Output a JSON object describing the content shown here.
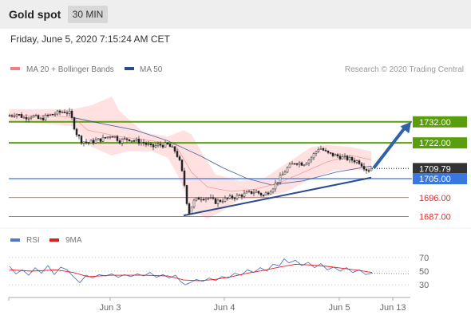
{
  "header": {
    "title": "Gold spot",
    "timeframe": "30 MIN"
  },
  "datetime": "Friday, June 5, 2020 7:15:24 AM CET",
  "legend": {
    "bb_label": "MA 20 + Bollinger Bands",
    "ma50_label": "MA 50",
    "copyright": "Research © 2020 Trading Central",
    "rsi_label": "RSI",
    "rsi_ma_label": "9MA"
  },
  "colors": {
    "bb_band": "#ffdcdc",
    "ma20": "#f08080",
    "ma50": "#2c4a8c",
    "resistance": "#5a9e0e",
    "support_red": "#e03030",
    "pivot_blue": "#3a78e0",
    "arrow": "#2f63a8",
    "rsi": "#5577cc",
    "rsi_ma": "#e02020",
    "last_price_tag": "#333333"
  },
  "chart_data": [
    {
      "type": "candlestick",
      "title": "Gold spot 30 MIN",
      "y_range": [
        1680,
        1752
      ],
      "x_ticks": [
        "Jun 3",
        "Jun 4",
        "Jun 5",
        "Jun 13"
      ],
      "levels": [
        {
          "value": 1732.0,
          "label": "1732.00",
          "kind": "resistance",
          "color": "#5a9e0e"
        },
        {
          "value": 1722.0,
          "label": "1722.00",
          "kind": "resistance",
          "color": "#5a9e0e"
        },
        {
          "value": 1709.79,
          "label": "1709.79",
          "kind": "last",
          "color": "#333333"
        },
        {
          "value": 1705.0,
          "label": "1705.00",
          "kind": "pivot",
          "color": "#3a78e0"
        },
        {
          "value": 1696.0,
          "label": "1696.00",
          "kind": "support",
          "color": "#e03030"
        },
        {
          "value": 1687.0,
          "label": "1687.00",
          "kind": "support",
          "color": "#e03030"
        }
      ],
      "trendline": {
        "from": [
          230,
          1687.5
        ],
        "to": [
          465,
          1705.5
        ]
      },
      "arrow": {
        "from": [
          468,
          1710
        ],
        "to": [
          515,
          1732
        ]
      },
      "price_path": [
        [
          12,
          1735
        ],
        [
          20,
          1736
        ],
        [
          30,
          1734
        ],
        [
          40,
          1735
        ],
        [
          50,
          1733
        ],
        [
          60,
          1735
        ],
        [
          70,
          1736
        ],
        [
          80,
          1737
        ],
        [
          88,
          1736
        ],
        [
          95,
          1727
        ],
        [
          102,
          1723
        ],
        [
          110,
          1722
        ],
        [
          120,
          1723
        ],
        [
          130,
          1724
        ],
        [
          140,
          1726
        ],
        [
          150,
          1723
        ],
        [
          160,
          1724
        ],
        [
          170,
          1723
        ],
        [
          180,
          1722
        ],
        [
          190,
          1720
        ],
        [
          200,
          1721
        ],
        [
          210,
          1721
        ],
        [
          220,
          1718
        ],
        [
          226,
          1712
        ],
        [
          232,
          1700
        ],
        [
          236,
          1688
        ],
        [
          242,
          1694
        ],
        [
          250,
          1696
        ],
        [
          260,
          1696
        ],
        [
          270,
          1694
        ],
        [
          280,
          1695
        ],
        [
          290,
          1696
        ],
        [
          300,
          1697
        ],
        [
          310,
          1698
        ],
        [
          320,
          1699
        ],
        [
          330,
          1697
        ],
        [
          340,
          1700
        ],
        [
          350,
          1705
        ],
        [
          360,
          1710
        ],
        [
          370,
          1713
        ],
        [
          380,
          1712
        ],
        [
          390,
          1715
        ],
        [
          400,
          1720
        ],
        [
          410,
          1717
        ],
        [
          420,
          1716
        ],
        [
          430,
          1715
        ],
        [
          440,
          1714
        ],
        [
          450,
          1713
        ],
        [
          460,
          1709
        ],
        [
          466,
          1710
        ]
      ],
      "ma50": [
        [
          92,
          1734
        ],
        [
          130,
          1731
        ],
        [
          170,
          1728
        ],
        [
          210,
          1723
        ],
        [
          250,
          1716
        ],
        [
          280,
          1710
        ],
        [
          310,
          1705
        ],
        [
          340,
          1702
        ],
        [
          380,
          1704
        ],
        [
          420,
          1708
        ],
        [
          465,
          1711
        ]
      ],
      "ma20": [
        [
          12,
          1735
        ],
        [
          60,
          1735
        ],
        [
          92,
          1734
        ],
        [
          110,
          1728
        ],
        [
          150,
          1725
        ],
        [
          190,
          1723
        ],
        [
          220,
          1721
        ],
        [
          240,
          1708
        ],
        [
          260,
          1701
        ],
        [
          290,
          1699
        ],
        [
          320,
          1700
        ],
        [
          350,
          1703
        ],
        [
          380,
          1708
        ],
        [
          410,
          1713
        ],
        [
          440,
          1716
        ],
        [
          465,
          1714
        ]
      ],
      "bb_upper": [
        [
          12,
          1738
        ],
        [
          60,
          1738
        ],
        [
          92,
          1738
        ],
        [
          115,
          1740
        ],
        [
          140,
          1744
        ],
        [
          150,
          1737
        ],
        [
          180,
          1727
        ],
        [
          210,
          1725
        ],
        [
          230,
          1728
        ],
        [
          240,
          1726
        ],
        [
          255,
          1716
        ],
        [
          270,
          1707
        ],
        [
          300,
          1704
        ],
        [
          330,
          1705
        ],
        [
          350,
          1710
        ],
        [
          370,
          1715
        ],
        [
          390,
          1720
        ],
        [
          410,
          1721
        ],
        [
          440,
          1720
        ],
        [
          465,
          1718
        ]
      ],
      "bb_lower": [
        [
          12,
          1732
        ],
        [
          60,
          1731
        ],
        [
          92,
          1730
        ],
        [
          115,
          1720
        ],
        [
          140,
          1716
        ],
        [
          160,
          1718
        ],
        [
          190,
          1718
        ],
        [
          210,
          1715
        ],
        [
          225,
          1705
        ],
        [
          240,
          1690
        ],
        [
          260,
          1686
        ],
        [
          280,
          1690
        ],
        [
          300,
          1695
        ],
        [
          330,
          1696
        ],
        [
          360,
          1699
        ],
        [
          390,
          1705
        ],
        [
          420,
          1709
        ],
        [
          445,
          1709
        ],
        [
          465,
          1709
        ]
      ]
    },
    {
      "type": "line",
      "title": "RSI",
      "y_range": [
        15,
        85
      ],
      "y_ticks": [
        {
          "value": 70,
          "label": "70"
        },
        {
          "value": 50,
          "label": "50"
        },
        {
          "value": 30,
          "label": "30"
        }
      ],
      "series": [
        {
          "name": "RSI",
          "color": "#5577cc",
          "points": [
            [
              12,
              57
            ],
            [
              20,
              46
            ],
            [
              28,
              52
            ],
            [
              36,
              44
            ],
            [
              44,
              55
            ],
            [
              52,
              47
            ],
            [
              60,
              58
            ],
            [
              68,
              45
            ],
            [
              76,
              56
            ],
            [
              84,
              52
            ],
            [
              92,
              42
            ],
            [
              100,
              33
            ],
            [
              108,
              44
            ],
            [
              116,
              40
            ],
            [
              124,
              45
            ],
            [
              132,
              43
            ],
            [
              140,
              46
            ],
            [
              148,
              41
            ],
            [
              156,
              45
            ],
            [
              164,
              42
            ],
            [
              172,
              46
            ],
            [
              180,
              43
            ],
            [
              188,
              48
            ],
            [
              196,
              41
            ],
            [
              204,
              45
            ],
            [
              212,
              40
            ],
            [
              220,
              44
            ],
            [
              226,
              35
            ],
            [
              232,
              30
            ],
            [
              238,
              33
            ],
            [
              246,
              38
            ],
            [
              254,
              35
            ],
            [
              262,
              40
            ],
            [
              270,
              36
            ],
            [
              278,
              42
            ],
            [
              286,
              40
            ],
            [
              294,
              47
            ],
            [
              302,
              44
            ],
            [
              310,
              52
            ],
            [
              318,
              48
            ],
            [
              326,
              55
            ],
            [
              334,
              50
            ],
            [
              342,
              60
            ],
            [
              350,
              58
            ],
            [
              356,
              68
            ],
            [
              362,
              62
            ],
            [
              370,
              66
            ],
            [
              378,
              58
            ],
            [
              386,
              63
            ],
            [
              394,
              55
            ],
            [
              402,
              61
            ],
            [
              410,
              52
            ],
            [
              418,
              56
            ],
            [
              426,
              50
            ],
            [
              434,
              55
            ],
            [
              442,
              48
            ],
            [
              450,
              52
            ],
            [
              458,
              45
            ],
            [
              466,
              47
            ]
          ]
        },
        {
          "name": "9MA",
          "color": "#e02020",
          "points": [
            [
              12,
              52
            ],
            [
              40,
              50
            ],
            [
              70,
              52
            ],
            [
              92,
              48
            ],
            [
              110,
              42
            ],
            [
              140,
              44
            ],
            [
              180,
              44
            ],
            [
              210,
              43
            ],
            [
              230,
              37
            ],
            [
              250,
              36
            ],
            [
              270,
              38
            ],
            [
              290,
              42
            ],
            [
              310,
              47
            ],
            [
              330,
              51
            ],
            [
              350,
              56
            ],
            [
              370,
              60
            ],
            [
              390,
              59
            ],
            [
              410,
              57
            ],
            [
              430,
              54
            ],
            [
              450,
              51
            ],
            [
              466,
              48
            ]
          ]
        }
      ],
      "dotted_extension": [
        [
          466,
          47
        ],
        [
          512,
          46
        ]
      ]
    }
  ]
}
